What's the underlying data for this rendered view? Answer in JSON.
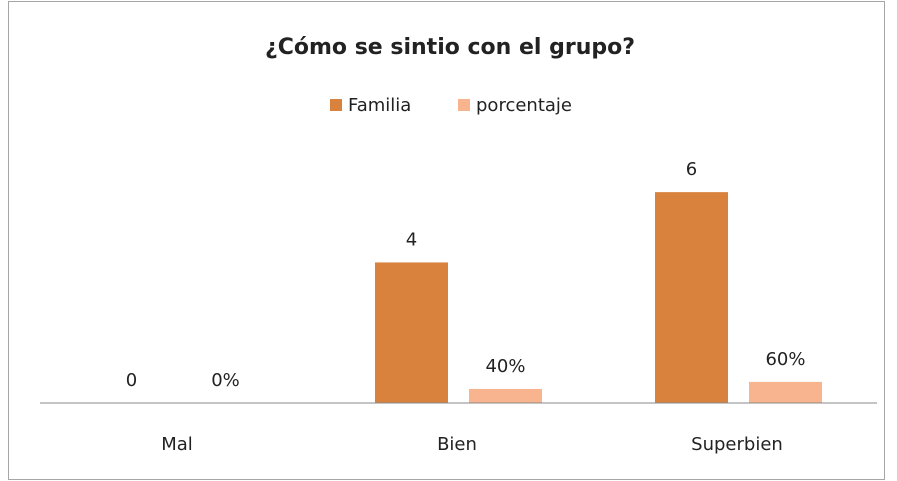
{
  "chart_data": {
    "type": "bar",
    "title": "¿Cómo se sintio con el grupo?",
    "categories": [
      "Mal",
      "Bien",
      "Superbien"
    ],
    "series": [
      {
        "name": "Familia",
        "color": "#d9823e",
        "values": [
          0,
          4,
          6
        ]
      },
      {
        "name": "porcentaje",
        "color": "#f7b48e",
        "values": [
          0,
          0.4,
          0.6
        ],
        "value_labels": [
          "0%",
          "40%",
          "60%"
        ]
      }
    ],
    "ylim": [
      0,
      7
    ],
    "legend": "top"
  }
}
